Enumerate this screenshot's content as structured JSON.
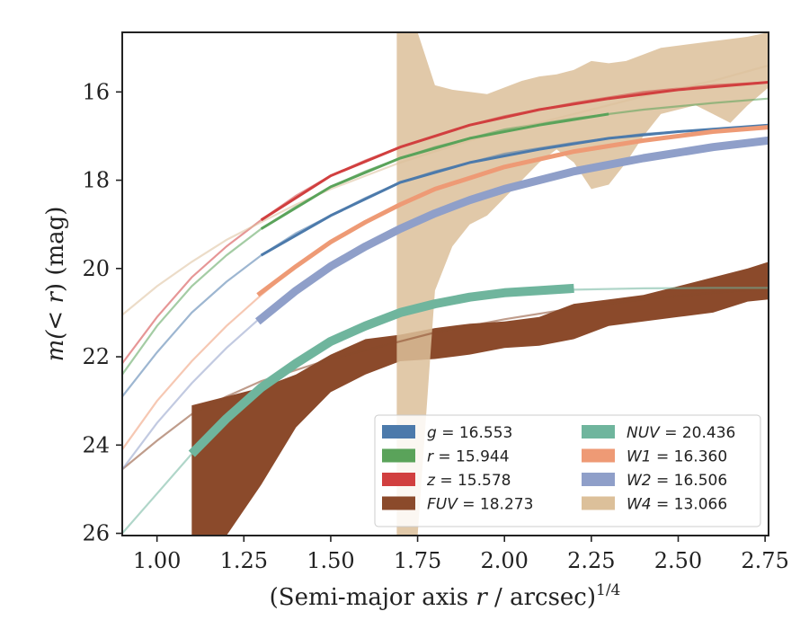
{
  "chart_data": {
    "type": "line",
    "xlabel_parts": [
      "(Semi-major axis ",
      "r",
      " / arcsec)",
      "1/4"
    ],
    "ylabel_parts": [
      "m(",
      "< r",
      ") (mag)"
    ],
    "xlim": [
      0.9,
      2.76
    ],
    "ylim": [
      26.05,
      14.65
    ],
    "y_inverted": true,
    "xticks": [
      1.0,
      1.25,
      1.5,
      1.75,
      2.0,
      2.25,
      2.5,
      2.75
    ],
    "xtick_labels": [
      "1.00",
      "1.25",
      "1.50",
      "1.75",
      "2.00",
      "2.25",
      "2.50",
      "2.75"
    ],
    "yticks": [
      16,
      18,
      20,
      22,
      24,
      26
    ],
    "ytick_labels": [
      "16",
      "18",
      "20",
      "22",
      "24",
      "26"
    ],
    "legend": {
      "position": "lower-right",
      "columns": 2,
      "entries": [
        {
          "var": "g",
          "text": " = 16.553",
          "color": "#4c7aab"
        },
        {
          "var": "r",
          "text": " = 15.944",
          "color": "#5aa35a"
        },
        {
          "var": "z",
          "text": " = 15.578",
          "color": "#d13f3f"
        },
        {
          "var": "FUV",
          "text": " = 18.273",
          "color": "#8b4a2b"
        },
        {
          "var": "NUV",
          "text": " = 20.436",
          "color": "#6fb59d"
        },
        {
          "var": "W1",
          "text": " = 16.360",
          "color": "#ee9a75"
        },
        {
          "var": "W2",
          "text": " = 16.506",
          "color": "#8f9fc9"
        },
        {
          "var": "W4",
          "text": " = 13.066",
          "color": "#dcc09a"
        }
      ]
    },
    "series": [
      {
        "name": "g",
        "color": "#4c7aab",
        "model": {
          "x": [
            0.9,
            1.0,
            1.1,
            1.2,
            1.3,
            1.4,
            1.5,
            1.6,
            1.7,
            1.8,
            1.9,
            2.0,
            2.2,
            2.4,
            2.6,
            2.76
          ],
          "y": [
            22.9,
            21.9,
            21.0,
            20.3,
            19.7,
            19.2,
            18.8,
            18.4,
            18.05,
            17.8,
            17.6,
            17.4,
            17.15,
            16.95,
            16.85,
            16.75
          ]
        },
        "data": {
          "x": [
            1.3,
            1.5,
            1.7,
            1.9,
            2.1,
            2.3,
            2.5,
            2.76
          ],
          "y": [
            19.7,
            18.8,
            18.05,
            17.6,
            17.3,
            17.05,
            16.9,
            16.75
          ],
          "width": 3
        }
      },
      {
        "name": "r",
        "color": "#5aa35a",
        "model": {
          "x": [
            0.9,
            1.0,
            1.1,
            1.2,
            1.3,
            1.4,
            1.5,
            1.6,
            1.7,
            1.8,
            1.9,
            2.0,
            2.2,
            2.4,
            2.6,
            2.76
          ],
          "y": [
            22.4,
            21.3,
            20.4,
            19.7,
            19.1,
            18.6,
            18.15,
            17.8,
            17.5,
            17.25,
            17.05,
            16.85,
            16.6,
            16.4,
            16.25,
            16.15
          ]
        },
        "data": {
          "x": [
            1.3,
            1.5,
            1.7,
            1.9,
            2.1,
            2.3
          ],
          "y": [
            19.1,
            18.15,
            17.5,
            17.05,
            16.75,
            16.5
          ],
          "width": 3
        }
      },
      {
        "name": "z",
        "color": "#d13f3f",
        "model": {
          "x": [
            0.9,
            1.0,
            1.1,
            1.2,
            1.3,
            1.4,
            1.5,
            1.6,
            1.7,
            1.8,
            1.9,
            2.0,
            2.2,
            2.4,
            2.6,
            2.76
          ],
          "y": [
            22.15,
            21.1,
            20.2,
            19.5,
            18.9,
            18.35,
            17.9,
            17.55,
            17.25,
            17.0,
            16.75,
            16.55,
            16.25,
            16.0,
            15.85,
            15.78
          ]
        },
        "data": {
          "x": [
            1.3,
            1.5,
            1.7,
            1.9,
            2.1,
            2.3,
            2.5,
            2.76
          ],
          "y": [
            18.9,
            17.9,
            17.25,
            16.75,
            16.4,
            16.15,
            15.95,
            15.78
          ],
          "width": 3
        }
      },
      {
        "name": "FUV",
        "color": "#8b4a2b",
        "model": {
          "x": [
            0.9,
            1.0,
            1.1,
            1.2,
            1.3,
            1.4,
            1.5,
            1.6,
            1.7,
            1.8,
            1.9,
            2.0,
            2.2,
            2.4,
            2.6,
            2.76
          ],
          "y": [
            24.55,
            23.9,
            23.3,
            22.9,
            22.55,
            22.3,
            22.05,
            21.85,
            21.65,
            21.45,
            21.3,
            21.15,
            20.9,
            20.7,
            20.55,
            20.45
          ]
        },
        "band": {
          "x": [
            1.1,
            1.2,
            1.3,
            1.4,
            1.5,
            1.6,
            1.7,
            1.8,
            1.9,
            2.0,
            2.1,
            2.2,
            2.3,
            2.4,
            2.5,
            2.6,
            2.7,
            2.76
          ],
          "lo": [
            23.1,
            22.9,
            22.7,
            22.4,
            21.95,
            21.6,
            21.5,
            21.35,
            21.25,
            21.2,
            21.1,
            20.8,
            20.7,
            20.6,
            20.4,
            20.2,
            20.0,
            19.85
          ],
          "hi": [
            26.05,
            26.05,
            24.9,
            23.6,
            22.8,
            22.4,
            22.1,
            22.05,
            21.95,
            21.8,
            21.75,
            21.6,
            21.3,
            21.2,
            21.1,
            21.0,
            20.75,
            20.7
          ]
        }
      },
      {
        "name": "NUV",
        "color": "#6fb59d",
        "model": {
          "x": [
            0.9,
            1.0,
            1.1,
            1.2,
            1.3,
            1.4,
            1.5,
            1.6,
            1.7,
            1.8,
            1.9,
            2.0,
            2.2,
            2.4,
            2.6,
            2.76
          ],
          "y": [
            26.0,
            25.1,
            24.2,
            23.4,
            22.7,
            22.15,
            21.65,
            21.3,
            21.0,
            20.8,
            20.65,
            20.55,
            20.48,
            20.45,
            20.44,
            20.44
          ]
        },
        "data": {
          "x": [
            1.1,
            1.2,
            1.3,
            1.4,
            1.5,
            1.6,
            1.7,
            1.8,
            1.9,
            2.0,
            2.1,
            2.2
          ],
          "y": [
            24.2,
            23.4,
            22.7,
            22.15,
            21.65,
            21.3,
            21.0,
            20.8,
            20.65,
            20.55,
            20.5,
            20.45
          ],
          "width": 10
        }
      },
      {
        "name": "W1",
        "color": "#ee9a75",
        "model": {
          "x": [
            0.9,
            1.0,
            1.1,
            1.2,
            1.3,
            1.4,
            1.5,
            1.6,
            1.7,
            1.8,
            1.9,
            2.0,
            2.2,
            2.4,
            2.6,
            2.76
          ],
          "y": [
            24.1,
            23.0,
            22.1,
            21.3,
            20.6,
            19.95,
            19.4,
            18.95,
            18.55,
            18.2,
            17.95,
            17.7,
            17.35,
            17.1,
            16.9,
            16.8
          ]
        },
        "data": {
          "x": [
            1.29,
            1.4,
            1.5,
            1.6,
            1.7,
            1.8,
            1.9,
            2.0,
            2.2,
            2.4,
            2.6,
            2.76
          ],
          "y": [
            20.6,
            19.95,
            19.4,
            18.95,
            18.55,
            18.2,
            17.95,
            17.7,
            17.35,
            17.1,
            16.9,
            16.8
          ],
          "width": 5
        }
      },
      {
        "name": "W2",
        "color": "#8f9fc9",
        "model": {
          "x": [
            0.9,
            1.0,
            1.1,
            1.2,
            1.3,
            1.4,
            1.5,
            1.6,
            1.7,
            1.8,
            1.9,
            2.0,
            2.2,
            2.4,
            2.6,
            2.76
          ],
          "y": [
            24.55,
            23.5,
            22.6,
            21.8,
            21.1,
            20.5,
            19.95,
            19.5,
            19.1,
            18.75,
            18.45,
            18.2,
            17.8,
            17.5,
            17.25,
            17.1
          ]
        },
        "data": {
          "x": [
            1.29,
            1.4,
            1.5,
            1.6,
            1.7,
            1.8,
            1.9,
            2.0,
            2.2,
            2.4,
            2.6,
            2.76
          ],
          "y": [
            21.2,
            20.5,
            19.95,
            19.5,
            19.1,
            18.75,
            18.45,
            18.2,
            17.8,
            17.5,
            17.25,
            17.1
          ],
          "width": 9
        }
      },
      {
        "name": "W4",
        "color": "#dcc09a",
        "model": {
          "x": [
            0.9,
            1.0,
            1.1,
            1.2,
            1.3,
            1.4,
            1.5,
            1.6,
            1.7,
            1.8,
            1.9,
            2.0,
            2.2,
            2.4,
            2.6,
            2.76
          ],
          "y": [
            21.05,
            20.4,
            19.85,
            19.35,
            18.95,
            18.55,
            18.2,
            17.9,
            17.6,
            17.35,
            17.1,
            16.9,
            16.5,
            16.1,
            15.75,
            15.4
          ]
        },
        "band": {
          "x": [
            1.69,
            1.7,
            1.75,
            1.8,
            1.85,
            1.9,
            1.95,
            2.0,
            2.05,
            2.1,
            2.15,
            2.2,
            2.25,
            2.3,
            2.35,
            2.4,
            2.45,
            2.5,
            2.55,
            2.6,
            2.65,
            2.7,
            2.76
          ],
          "lo": [
            14.65,
            14.65,
            14.65,
            15.85,
            15.95,
            16.0,
            16.05,
            15.9,
            15.75,
            15.65,
            15.6,
            15.5,
            15.3,
            15.35,
            15.3,
            15.15,
            15.0,
            14.95,
            14.9,
            14.85,
            14.8,
            14.75,
            14.65
          ],
          "hi": [
            26.05,
            26.05,
            26.05,
            20.5,
            19.5,
            19.0,
            18.8,
            18.4,
            18.0,
            17.6,
            17.3,
            17.6,
            18.2,
            18.1,
            17.6,
            17.0,
            16.5,
            16.4,
            16.3,
            16.5,
            16.7,
            16.3,
            15.9
          ]
        }
      }
    ]
  }
}
